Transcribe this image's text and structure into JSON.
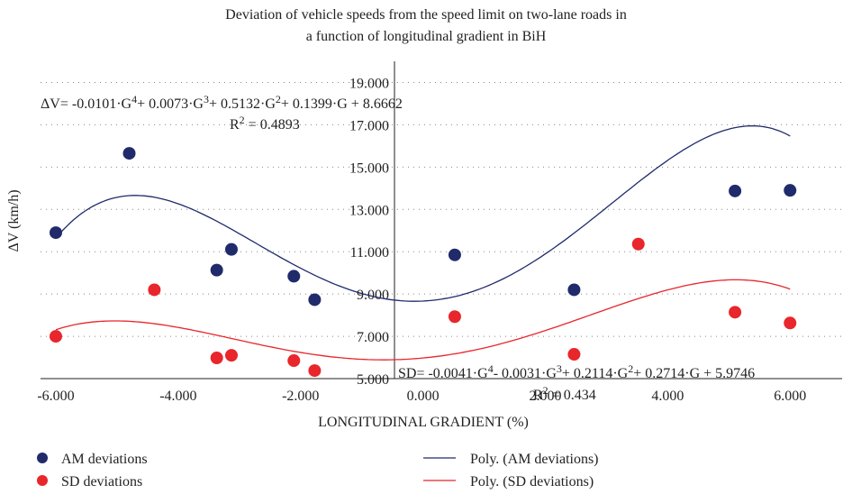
{
  "chart_data": {
    "type": "scatter",
    "title": [
      "Deviation of vehicle speeds from the speed limit on two-lane roads in",
      "a function of longitudinal gradient in BiH"
    ],
    "xlabel": "LONGITUDINAL GRADIENT (%)",
    "ylabel": "ΔV (km/h)",
    "xlim": [
      -6.25,
      6.85
    ],
    "ylim": [
      5,
      20
    ],
    "xticks": [
      {
        "value": -6,
        "label": "-6.000"
      },
      {
        "value": -4,
        "label": "-4.000"
      },
      {
        "value": -2,
        "label": "-2.000"
      },
      {
        "value": 0,
        "label": "0.000"
      },
      {
        "value": 2,
        "label": "2.000"
      },
      {
        "value": 4,
        "label": "4.000"
      },
      {
        "value": 6,
        "label": "6.000"
      }
    ],
    "yticks": [
      {
        "value": 5,
        "label": "5.000"
      },
      {
        "value": 7,
        "label": "7.000"
      },
      {
        "value": 9,
        "label": "9.000"
      },
      {
        "value": 11,
        "label": "11.000"
      },
      {
        "value": 13,
        "label": "13.000"
      },
      {
        "value": 15,
        "label": "15.000"
      },
      {
        "value": 17,
        "label": "17.000"
      },
      {
        "value": 19,
        "label": "19.000"
      }
    ],
    "grid": true,
    "series": [
      {
        "name": "AM deviations",
        "color": "#1f2b6b",
        "x": [
          -6,
          -4.8,
          -3.37,
          -3.13,
          -2.11,
          -1.77,
          0.52,
          2.47,
          5.1,
          6
        ],
        "values": [
          11.9,
          15.65,
          10.13,
          11.11,
          9.84,
          8.73,
          10.85,
          9.2,
          13.87,
          13.9
        ]
      },
      {
        "name": "SD deviations",
        "color": "#e8262b",
        "x": [
          -6,
          -4.39,
          -3.37,
          -3.13,
          -2.11,
          -1.77,
          0.52,
          2.47,
          3.52,
          5.1,
          6
        ],
        "values": [
          7.0,
          9.2,
          5.98,
          6.1,
          5.85,
          5.38,
          7.93,
          6.15,
          11.36,
          8.14,
          7.63
        ]
      }
    ],
    "trendlines": [
      {
        "name": "Poly. (AM deviations)",
        "color": "#1f2b6b",
        "coefficients": [
          -0.0101,
          0.0073,
          0.5132,
          0.1399,
          8.6662
        ],
        "equation": [
          "ΔV= -0.0101·G",
          "4",
          "+ 0.0073·G",
          "3",
          "+ 0.5132·G",
          "2",
          "+ 0.1399·G + 8.6662"
        ],
        "r2": [
          "R",
          "2",
          " = 0.4893"
        ]
      },
      {
        "name": "Poly. (SD deviations)",
        "color": "#e8262b",
        "coefficients": [
          -0.0041,
          -0.0031,
          0.2114,
          0.2714,
          5.9746
        ],
        "equation": [
          "SD= -0.0041·G",
          "4",
          "- 0.0031·G",
          "3",
          "+ 0.2114·G",
          "2",
          "+ 0.2714·G + 5.9746"
        ],
        "r2": [
          "R",
          "2",
          " = 0.434"
        ]
      }
    ]
  }
}
